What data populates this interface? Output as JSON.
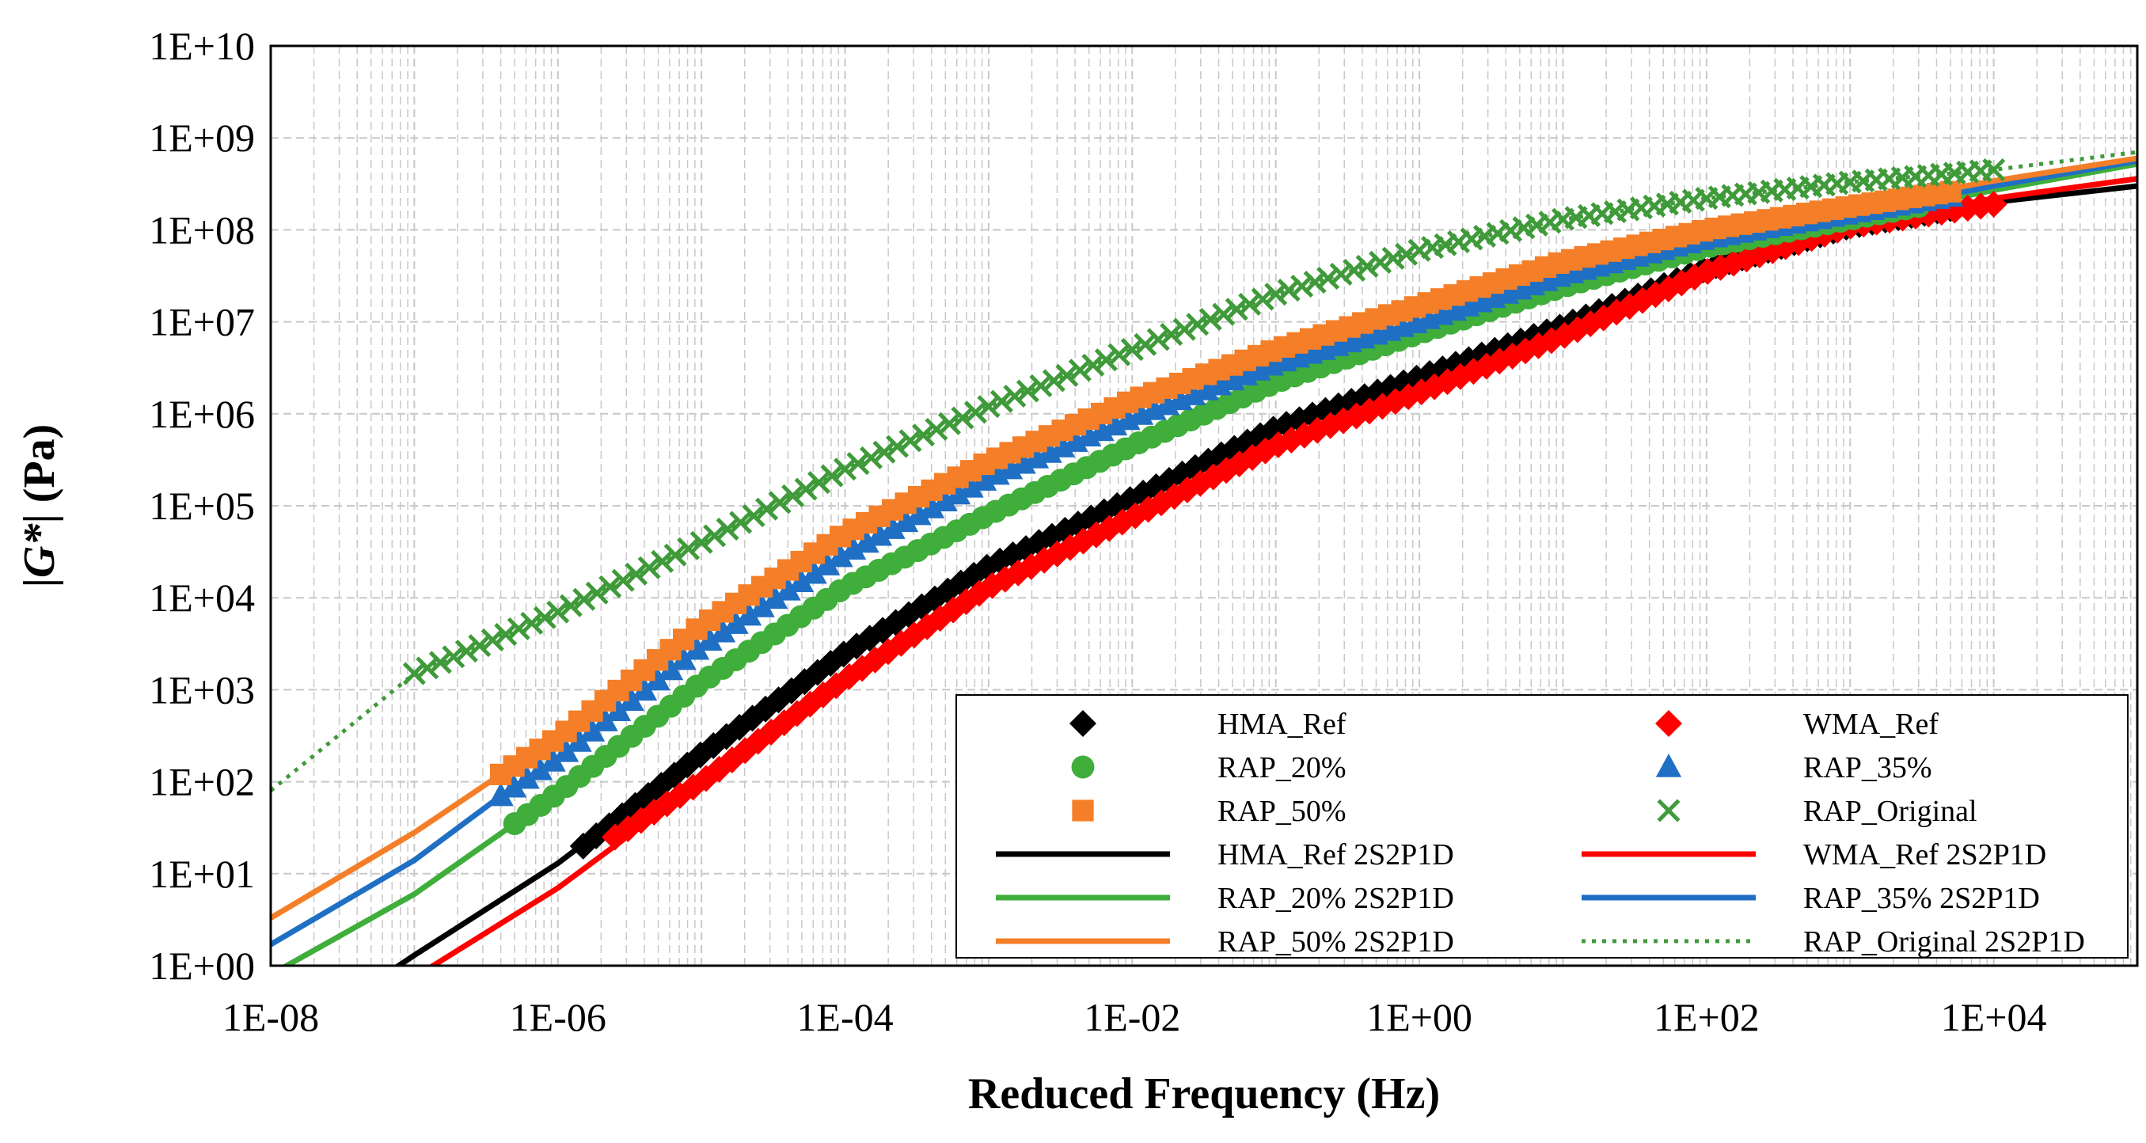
{
  "chart_data": {
    "type": "scatter",
    "title": "",
    "xlabel": "Reduced Frequency (Hz)",
    "ylabel_parts": [
      "|",
      "G*",
      "| (Pa)"
    ],
    "x_scale": "log",
    "y_scale": "log",
    "xlim": [
      1e-08,
      100000.0
    ],
    "ylim": [
      1,
      10000000000.0
    ],
    "grid": true,
    "legend_position": "bottom-right",
    "x_ticks": [
      {
        "value": 1e-08,
        "label": "1E-08"
      },
      {
        "value": 1e-06,
        "label": "1E-06"
      },
      {
        "value": 0.0001,
        "label": "1E-04"
      },
      {
        "value": 0.01,
        "label": "1E-02"
      },
      {
        "value": 1,
        "label": "1E+00"
      },
      {
        "value": 100.0,
        "label": "1E+02"
      },
      {
        "value": 10000.0,
        "label": "1E+04"
      }
    ],
    "y_ticks": [
      {
        "value": 1,
        "label": "1E+00"
      },
      {
        "value": 10,
        "label": "1E+01"
      },
      {
        "value": 100,
        "label": "1E+02"
      },
      {
        "value": 1000.0,
        "label": "1E+03"
      },
      {
        "value": 10000.0,
        "label": "1E+04"
      },
      {
        "value": 100000.0,
        "label": "1E+05"
      },
      {
        "value": 1000000.0,
        "label": "1E+06"
      },
      {
        "value": 10000000.0,
        "label": "1E+07"
      },
      {
        "value": 100000000.0,
        "label": "1E+08"
      },
      {
        "value": 1000000000.0,
        "label": "1E+09"
      },
      {
        "value": 10000000000.0,
        "label": "1E+10"
      }
    ],
    "marker_series": [
      {
        "name": "HMA_Ref",
        "marker": "diamond",
        "color": "#000000",
        "x_range": [
          1.5e-06,
          5000.0
        ],
        "points": [
          [
            1.5e-06,
            20
          ],
          [
            1e-05,
            200
          ],
          [
            0.0001,
            2500
          ],
          [
            0.001,
            22000
          ],
          [
            0.01,
            120000
          ],
          [
            0.1,
            700000
          ],
          [
            1,
            2500000
          ],
          [
            10,
            9000000
          ],
          [
            100,
            38000000
          ],
          [
            1000,
            110000000
          ],
          [
            5000,
            170000000
          ]
        ]
      },
      {
        "name": "WMA_Ref",
        "marker": "diamond",
        "color": "#ff0000",
        "x_range": [
          2.5e-06,
          10000.0
        ],
        "points": [
          [
            2.5e-06,
            25
          ],
          [
            1e-05,
            100
          ],
          [
            0.0001,
            1300
          ],
          [
            0.001,
            13000
          ],
          [
            0.01,
            75000
          ],
          [
            0.1,
            450000
          ],
          [
            1,
            1700000
          ],
          [
            10,
            7000000
          ],
          [
            100,
            35000000
          ],
          [
            1000,
            110000000
          ],
          [
            10000,
            190000000
          ]
        ]
      },
      {
        "name": "RAP_20%",
        "marker": "circle",
        "color": "#3fae3a",
        "x_range": [
          5e-07,
          3000.0
        ],
        "points": [
          [
            5e-07,
            35
          ],
          [
            1e-06,
            75
          ],
          [
            1e-05,
            1200
          ],
          [
            0.0001,
            13000
          ],
          [
            0.001,
            80000
          ],
          [
            0.01,
            450000
          ],
          [
            0.1,
            2200000
          ],
          [
            1,
            7500000
          ],
          [
            10,
            24000000
          ],
          [
            100,
            65000000
          ],
          [
            1000,
            130000000
          ],
          [
            3000,
            180000000
          ]
        ]
      },
      {
        "name": "RAP_35%",
        "marker": "triangle",
        "color": "#1f6fc4",
        "x_range": [
          4e-07,
          5000.0
        ],
        "points": [
          [
            4e-07,
            70
          ],
          [
            1e-06,
            180
          ],
          [
            1e-05,
            3000
          ],
          [
            0.0001,
            30000
          ],
          [
            0.001,
            200000
          ],
          [
            0.01,
            900000
          ],
          [
            0.1,
            3500000
          ],
          [
            1,
            10000000
          ],
          [
            10,
            32000000
          ],
          [
            100,
            80000000
          ],
          [
            1000,
            150000000
          ],
          [
            5000,
            230000000
          ]
        ]
      },
      {
        "name": "RAP_50%",
        "marker": "square",
        "color": "#f47f28",
        "x_range": [
          4e-07,
          5000.0
        ],
        "points": [
          [
            4e-07,
            120
          ],
          [
            1e-06,
            300
          ],
          [
            1e-05,
            5000
          ],
          [
            0.0001,
            50000
          ],
          [
            0.001,
            300000
          ],
          [
            0.01,
            1400000
          ],
          [
            0.1,
            5000000
          ],
          [
            1,
            15000000
          ],
          [
            10,
            45000000
          ],
          [
            100,
            100000000
          ],
          [
            1000,
            180000000
          ],
          [
            5000,
            260000000
          ]
        ]
      },
      {
        "name": "RAP_Original",
        "marker": "x",
        "color": "#3f9a3a",
        "x_range": [
          1e-07,
          10000.0
        ],
        "points": [
          [
            1e-07,
            1500
          ],
          [
            1e-06,
            7000
          ],
          [
            1e-05,
            40000
          ],
          [
            0.0001,
            250000
          ],
          [
            0.001,
            1200000
          ],
          [
            0.01,
            5000000
          ],
          [
            0.1,
            20000000
          ],
          [
            1,
            60000000
          ],
          [
            10,
            130000000
          ],
          [
            100,
            220000000
          ],
          [
            1000,
            330000000
          ],
          [
            10000,
            450000000
          ]
        ]
      }
    ],
    "fit_series": [
      {
        "name": "HMA_Ref 2S2P1D",
        "color": "#000000",
        "dash": "solid",
        "points": [
          [
            4e-08,
            0.5
          ],
          [
            1e-07,
            1.3
          ],
          [
            1e-06,
            13
          ],
          [
            1e-05,
            200
          ],
          [
            0.0001,
            2500
          ],
          [
            0.001,
            22000
          ],
          [
            0.01,
            120000
          ],
          [
            0.1,
            700000
          ],
          [
            1,
            2500000
          ],
          [
            10,
            9000000
          ],
          [
            100,
            38000000
          ],
          [
            1000,
            110000000
          ],
          [
            10000,
            200000000
          ],
          [
            100000.0,
            300000000
          ]
        ]
      },
      {
        "name": "WMA_Ref 2S2P1D",
        "color": "#ff0000",
        "dash": "solid",
        "points": [
          [
            8e-08,
            0.6
          ],
          [
            1e-06,
            7
          ],
          [
            1e-05,
            100
          ],
          [
            0.0001,
            1300
          ],
          [
            0.001,
            13000
          ],
          [
            0.01,
            75000
          ],
          [
            0.1,
            450000
          ],
          [
            1,
            1700000
          ],
          [
            10,
            7000000
          ],
          [
            100,
            35000000
          ],
          [
            1000,
            110000000
          ],
          [
            10000,
            220000000
          ],
          [
            100000.0,
            360000000
          ]
        ]
      },
      {
        "name": "RAP_20% 2S2P1D",
        "color": "#3fae3a",
        "dash": "solid",
        "points": [
          [
            1e-08,
            0.8
          ],
          [
            1e-07,
            6
          ],
          [
            5e-07,
            35
          ],
          [
            1e-06,
            75
          ],
          [
            1e-05,
            1200
          ],
          [
            0.0001,
            13000
          ],
          [
            0.001,
            80000
          ],
          [
            0.01,
            450000
          ],
          [
            0.1,
            2200000
          ],
          [
            1,
            7500000
          ],
          [
            10,
            24000000
          ],
          [
            100,
            65000000
          ],
          [
            1000,
            130000000
          ],
          [
            10000,
            270000000
          ],
          [
            100000.0,
            520000000
          ]
        ]
      },
      {
        "name": "RAP_35% 2S2P1D",
        "color": "#1f6fc4",
        "dash": "solid",
        "points": [
          [
            1e-08,
            1.7
          ],
          [
            1e-07,
            14
          ],
          [
            4e-07,
            70
          ],
          [
            1e-06,
            180
          ],
          [
            1e-05,
            3000
          ],
          [
            0.0001,
            30000
          ],
          [
            0.001,
            200000
          ],
          [
            0.01,
            900000
          ],
          [
            0.1,
            3500000
          ],
          [
            1,
            10000000
          ],
          [
            10,
            32000000
          ],
          [
            100,
            80000000
          ],
          [
            1000,
            150000000
          ],
          [
            10000,
            300000000
          ],
          [
            100000.0,
            560000000
          ]
        ]
      },
      {
        "name": "RAP_50% 2S2P1D",
        "color": "#f47f28",
        "dash": "solid",
        "points": [
          [
            1e-08,
            3.3
          ],
          [
            1e-07,
            28
          ],
          [
            4e-07,
            120
          ],
          [
            1e-06,
            300
          ],
          [
            1e-05,
            5000
          ],
          [
            0.0001,
            50000
          ],
          [
            0.001,
            300000
          ],
          [
            0.01,
            1400000
          ],
          [
            0.1,
            5000000
          ],
          [
            1,
            15000000
          ],
          [
            10,
            45000000
          ],
          [
            100,
            100000000
          ],
          [
            1000,
            180000000
          ],
          [
            10000,
            340000000
          ],
          [
            100000.0,
            600000000
          ]
        ]
      },
      {
        "name": "RAP_Original 2S2P1D",
        "color": "#3f9a3a",
        "dash": "dotted",
        "points": [
          [
            1e-08,
            80
          ],
          [
            1e-07,
            1500
          ],
          [
            1e-06,
            7000
          ],
          [
            1e-05,
            40000
          ],
          [
            0.0001,
            250000
          ],
          [
            0.001,
            1200000
          ],
          [
            0.01,
            5000000
          ],
          [
            0.1,
            20000000
          ],
          [
            1,
            60000000
          ],
          [
            10,
            130000000
          ],
          [
            100,
            220000000
          ],
          [
            1000,
            330000000
          ],
          [
            10000,
            450000000
          ],
          [
            100000.0,
            700000000
          ]
        ]
      }
    ],
    "legend": [
      {
        "name": "HMA_Ref",
        "kind": "marker",
        "marker": "diamond",
        "color": "#000000"
      },
      {
        "name": "WMA_Ref",
        "kind": "marker",
        "marker": "diamond",
        "color": "#ff0000"
      },
      {
        "name": "RAP_20%",
        "kind": "marker",
        "marker": "circle",
        "color": "#3fae3a"
      },
      {
        "name": "RAP_35%",
        "kind": "marker",
        "marker": "triangle",
        "color": "#1f6fc4"
      },
      {
        "name": "RAP_50%",
        "kind": "marker",
        "marker": "square",
        "color": "#f47f28"
      },
      {
        "name": "RAP_Original",
        "kind": "marker",
        "marker": "x",
        "color": "#3f9a3a"
      },
      {
        "name": "HMA_Ref 2S2P1D",
        "kind": "line",
        "dash": "solid",
        "color": "#000000"
      },
      {
        "name": "WMA_Ref 2S2P1D",
        "kind": "line",
        "dash": "solid",
        "color": "#ff0000"
      },
      {
        "name": "RAP_20% 2S2P1D",
        "kind": "line",
        "dash": "solid",
        "color": "#3fae3a"
      },
      {
        "name": "RAP_35% 2S2P1D",
        "kind": "line",
        "dash": "solid",
        "color": "#1f6fc4"
      },
      {
        "name": "RAP_50% 2S2P1D",
        "kind": "line",
        "dash": "solid",
        "color": "#f47f28"
      },
      {
        "name": "RAP_Original 2S2P1D",
        "kind": "line",
        "dash": "dotted",
        "color": "#3f9a3a"
      }
    ]
  }
}
